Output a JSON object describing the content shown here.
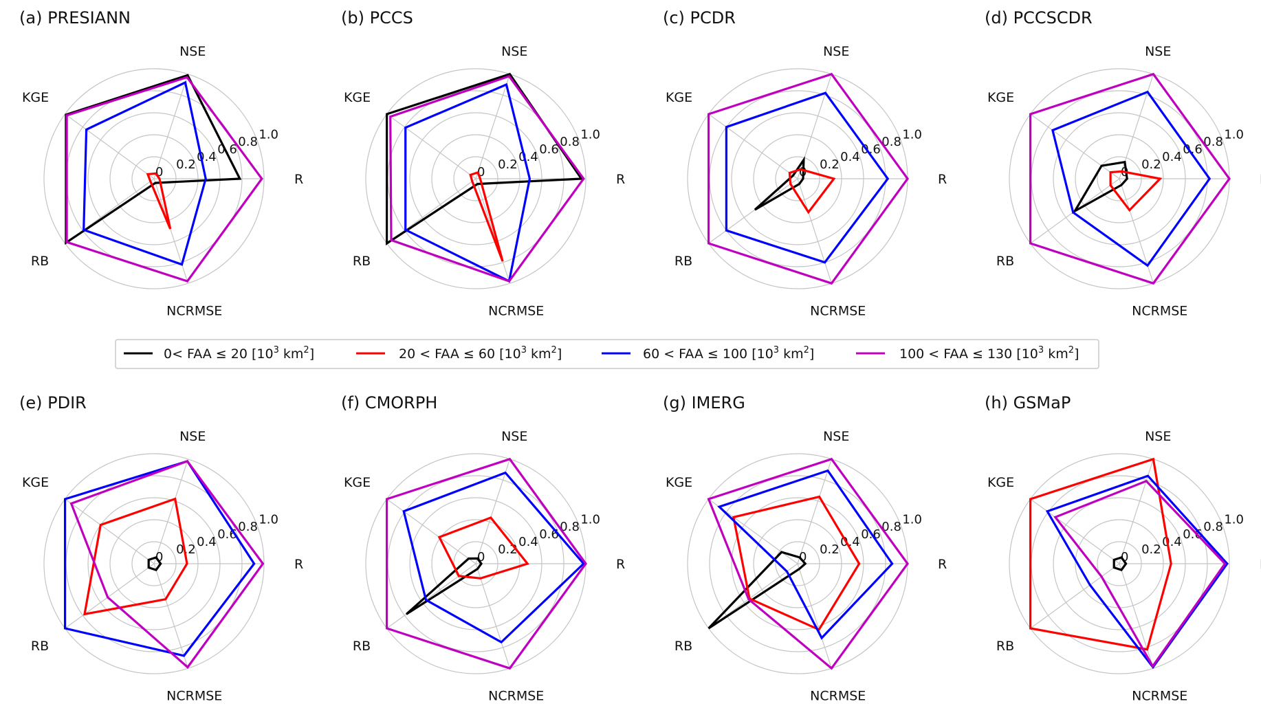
{
  "figure": {
    "legend": {
      "entries": [
        {
          "prefix": "0< FAA ≤ 20 [10",
          "sup": "3",
          "mid": " km",
          "sup2": "2",
          "suffix": "]",
          "color": "#000000"
        },
        {
          "prefix": "20 < FAA ≤ 60 [10",
          "sup": "3",
          "mid": " km",
          "sup2": "2",
          "suffix": "]",
          "color": "#ff0000"
        },
        {
          "prefix": "60 < FAA ≤ 100 [10",
          "sup": "3",
          "mid": " km",
          "sup2": "2",
          "suffix": "]",
          "color": "#0000ff"
        },
        {
          "prefix": "100 < FAA ≤ 130 [10",
          "sup": "3",
          "mid": " km",
          "sup2": "2",
          "suffix": "]",
          "color": "#bf00bf"
        }
      ]
    }
  },
  "chart_data": [
    {
      "type": "radar",
      "title": "(a) PRESIANN",
      "axes": [
        "R",
        "NSE",
        "KGE",
        "RB",
        "NCRMSE"
      ],
      "radial_ticks": [
        "0",
        "0.2",
        "0.4",
        "0.6",
        "0.8",
        "1.0"
      ],
      "rlim": [
        0,
        1.0
      ],
      "series": [
        {
          "name": "0< FAA ≤ 20",
          "color": "#000000",
          "values": [
            0.78,
            0.99,
            0.99,
            0.99,
            0.04
          ]
        },
        {
          "name": "20 < FAA ≤ 60",
          "color": "#ff0000",
          "values": [
            0.05,
            0.05,
            0.07,
            0.04,
            0.48
          ]
        },
        {
          "name": "60 < FAA ≤ 100",
          "color": "#0000ff",
          "values": [
            0.47,
            0.92,
            0.76,
            0.79,
            0.82
          ]
        },
        {
          "name": "100 < FAA ≤ 130",
          "color": "#bf00bf",
          "values": [
            0.98,
            0.97,
            0.98,
            0.98,
            0.98
          ]
        }
      ]
    },
    {
      "type": "radar",
      "title": "(b) PCCS",
      "axes": [
        "R",
        "NSE",
        "KGE",
        "RB",
        "NCRMSE"
      ],
      "radial_ticks": [
        "0",
        "0.2",
        "0.4",
        "0.6",
        "0.8",
        "1.0"
      ],
      "rlim": [
        0,
        1.0
      ],
      "series": [
        {
          "name": "0< FAA ≤ 20",
          "color": "#000000",
          "values": [
            0.96,
            1.0,
            1.0,
            1.0,
            0.05
          ]
        },
        {
          "name": "20 < FAA ≤ 60",
          "color": "#ff0000",
          "values": [
            0.04,
            0.06,
            0.06,
            0.04,
            0.79
          ]
        },
        {
          "name": "60 < FAA ≤ 100",
          "color": "#0000ff",
          "values": [
            0.49,
            0.9,
            0.79,
            0.79,
            0.98
          ]
        },
        {
          "name": "100 < FAA ≤ 130",
          "color": "#bf00bf",
          "values": [
            0.98,
            0.98,
            0.96,
            0.95,
            0.98
          ]
        }
      ]
    },
    {
      "type": "radar",
      "title": "(c) PCDR",
      "axes": [
        "R",
        "NSE",
        "KGE",
        "RB",
        "NCRMSE"
      ],
      "radial_ticks": [
        "0",
        "0.2",
        "0.4",
        "0.6",
        "0.8",
        "1.0"
      ],
      "rlim": [
        0,
        1.0
      ],
      "series": [
        {
          "name": "0< FAA ≤ 20",
          "color": "#000000",
          "values": [
            0.05,
            0.18,
            0.05,
            0.48,
            0.05
          ]
        },
        {
          "name": "20 < FAA ≤ 60",
          "color": "#ff0000",
          "values": [
            0.33,
            0.09,
            0.09,
            0.08,
            0.32
          ]
        },
        {
          "name": "60 < FAA ≤ 100",
          "color": "#0000ff",
          "values": [
            0.82,
            0.82,
            0.8,
            0.8,
            0.8
          ]
        },
        {
          "name": "100 < FAA ≤ 130",
          "color": "#bf00bf",
          "values": [
            1.0,
            1.0,
            1.0,
            1.0,
            1.0
          ]
        }
      ]
    },
    {
      "type": "radar",
      "title": "(d) PCCSCDR",
      "axes": [
        "R",
        "NSE",
        "KGE",
        "RB",
        "NCRMSE"
      ],
      "radial_ticks": [
        "0",
        "0.2",
        "0.4",
        "0.6",
        "0.8",
        "1.0"
      ],
      "rlim": [
        0,
        1.0
      ],
      "series": [
        {
          "name": "0< FAA ≤ 20",
          "color": "#000000",
          "values": [
            0.07,
            0.16,
            0.2,
            0.5,
            0.06
          ]
        },
        {
          "name": "20 < FAA ≤ 60",
          "color": "#ff0000",
          "values": [
            0.37,
            0.07,
            0.1,
            0.1,
            0.3
          ]
        },
        {
          "name": "60 < FAA ≤ 100",
          "color": "#0000ff",
          "values": [
            0.82,
            0.83,
            0.75,
            0.52,
            0.83
          ]
        },
        {
          "name": "100 < FAA ≤ 130",
          "color": "#bf00bf",
          "values": [
            1.0,
            1.0,
            1.0,
            1.0,
            1.0
          ]
        }
      ]
    },
    {
      "type": "radar",
      "title": "(e) PDIR",
      "axes": [
        "R",
        "NSE",
        "KGE",
        "RB",
        "NCRMSE"
      ],
      "radial_ticks": [
        "0",
        "0.2",
        "0.4",
        "0.6",
        "0.8",
        "1.0"
      ],
      "rlim": [
        0,
        1.0
      ],
      "series": [
        {
          "name": "0< FAA ≤ 20",
          "color": "#000000",
          "values": [
            0.06,
            0.06,
            0.06,
            0.06,
            0.06
          ]
        },
        {
          "name": "20 < FAA ≤ 60",
          "color": "#ff0000",
          "values": [
            0.3,
            0.62,
            0.6,
            0.78,
            0.34
          ]
        },
        {
          "name": "60 < FAA ≤ 100",
          "color": "#0000ff",
          "values": [
            0.91,
            0.98,
            1.0,
            1.0,
            0.88
          ]
        },
        {
          "name": "100 < FAA ≤ 130",
          "color": "#bf00bf",
          "values": [
            0.99,
            0.98,
            0.93,
            0.52,
            0.99
          ]
        }
      ]
    },
    {
      "type": "radar",
      "title": "(f) CMORPH",
      "axes": [
        "R",
        "NSE",
        "KGE",
        "RB",
        "NCRMSE"
      ],
      "radial_ticks": [
        "0",
        "0.2",
        "0.4",
        "0.6",
        "0.8",
        "1.0"
      ],
      "rlim": [
        0,
        1.0
      ],
      "series": [
        {
          "name": "0< FAA ≤ 20",
          "color": "#000000",
          "values": [
            0.05,
            0.05,
            0.08,
            0.78,
            0.05
          ]
        },
        {
          "name": "20 < FAA ≤ 60",
          "color": "#ff0000",
          "values": [
            0.47,
            0.44,
            0.41,
            0.19,
            0.14
          ]
        },
        {
          "name": "60 < FAA ≤ 100",
          "color": "#0000ff",
          "values": [
            0.98,
            0.87,
            0.81,
            0.56,
            0.75
          ]
        },
        {
          "name": "100 < FAA ≤ 130",
          "color": "#bf00bf",
          "values": [
            1.0,
            1.0,
            1.0,
            1.0,
            1.0
          ]
        }
      ]
    },
    {
      "type": "radar",
      "title": "(g) IMERG",
      "axes": [
        "R",
        "NSE",
        "KGE",
        "RB",
        "NCRMSE"
      ],
      "radial_ticks": [
        "0",
        "0.2",
        "0.4",
        "0.6",
        "0.8",
        "1.0"
      ],
      "rlim": [
        0,
        1.0
      ],
      "series": [
        {
          "name": "0< FAA ≤ 20",
          "color": "#000000",
          "values": [
            0.07,
            0.06,
            0.18,
            1.0,
            0.05
          ]
        },
        {
          "name": "20 < FAA ≤ 60",
          "color": "#ff0000",
          "values": [
            0.56,
            0.64,
            0.72,
            0.54,
            0.63
          ]
        },
        {
          "name": "60 < FAA ≤ 100",
          "color": "#0000ff",
          "values": [
            0.86,
            0.89,
            0.88,
            0.12,
            0.71
          ]
        },
        {
          "name": "100 < FAA ≤ 130",
          "color": "#bf00bf",
          "values": [
            1.0,
            1.0,
            1.0,
            0.55,
            1.0
          ]
        }
      ]
    },
    {
      "type": "radar",
      "title": "(h) GSMaP",
      "axes": [
        "R",
        "NSE",
        "KGE",
        "RB",
        "NCRMSE"
      ],
      "radial_ticks": [
        "0",
        "0.2",
        "0.4",
        "0.6",
        "0.8",
        "1.0"
      ],
      "rlim": [
        0,
        1.0
      ],
      "series": [
        {
          "name": "0< FAA ≤ 20",
          "color": "#000000",
          "values": [
            0.06,
            0.06,
            0.06,
            0.06,
            0.06
          ]
        },
        {
          "name": "20 < FAA ≤ 60",
          "color": "#ff0000",
          "values": [
            0.47,
            1.0,
            1.0,
            1.0,
            0.82
          ]
        },
        {
          "name": "60 < FAA ≤ 100",
          "color": "#0000ff",
          "values": [
            0.98,
            0.84,
            0.81,
            0.33,
            0.99
          ]
        },
        {
          "name": "100 < FAA ≤ 130",
          "color": "#bf00bf",
          "values": [
            0.96,
            0.79,
            0.72,
            0.2,
            0.98
          ]
        }
      ]
    }
  ]
}
